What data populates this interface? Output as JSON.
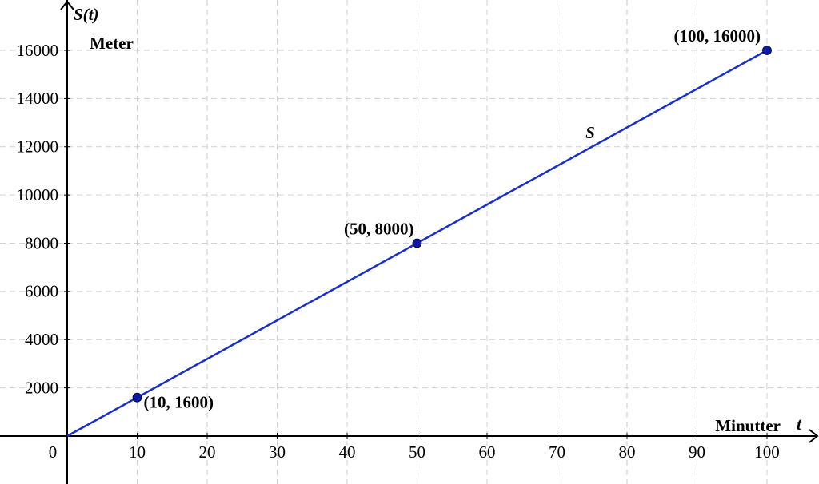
{
  "chart_data": {
    "type": "line",
    "y_label": "S(t)",
    "y_unit_label": "Meter",
    "x_unit_label": "Minutter",
    "x_label": "t",
    "xlim": [
      -9.6,
      107.43
    ],
    "ylim": [
      -1988,
      18087
    ],
    "xticks": [
      0,
      10,
      20,
      30,
      40,
      50,
      60,
      70,
      80,
      90,
      100
    ],
    "yticks": [
      2000,
      4000,
      6000,
      8000,
      10000,
      12000,
      14000,
      16000
    ],
    "grid": true,
    "series": [
      {
        "name": "S",
        "color": "#1a2fc4",
        "x": [
          0,
          100
        ],
        "values": [
          0,
          16000
        ]
      }
    ],
    "points": {
      "color": "#0a1aa8",
      "x": [
        10,
        50,
        100
      ],
      "values": [
        1600,
        8000,
        16000
      ],
      "labels": [
        "(10, 1600)",
        "(50, 8000)",
        "(100, 16000)"
      ]
    }
  }
}
